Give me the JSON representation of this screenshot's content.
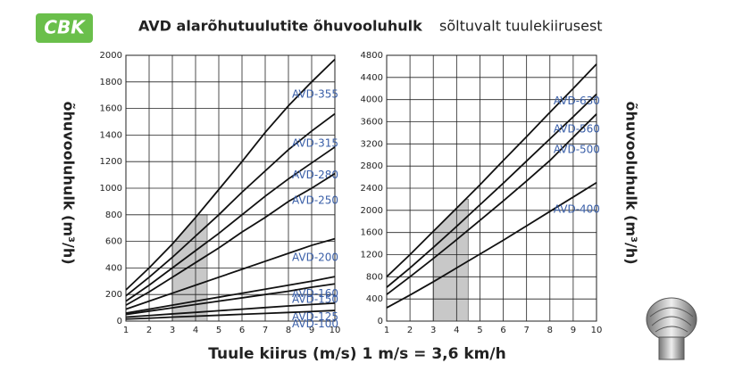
{
  "header": {
    "logo": "CBK",
    "title_bold": "AVD alarõhutuulutite õhuvooluhulk",
    "title_rest": "sõltuvalt tuulekiirusest",
    "x_label": "Tuule kiirus (m/s) 1 m/s = 3,6 km/h",
    "y_label": "õhuvooluhulk (m³/h)"
  },
  "chart_data": [
    {
      "type": "line",
      "x": [
        1,
        2,
        3,
        4,
        5,
        6,
        7,
        8,
        9,
        10
      ],
      "xlim": [
        1,
        10
      ],
      "xticks": [
        1,
        2,
        3,
        4,
        5,
        6,
        7,
        8,
        9,
        10
      ],
      "ylim": [
        0,
        2000
      ],
      "yticks": [
        0,
        200,
        400,
        600,
        800,
        1000,
        1200,
        1400,
        1600,
        1800,
        2000
      ],
      "grid": true,
      "shade": {
        "x": [
          3,
          4.5
        ],
        "top": 800,
        "color": "#c8c8c8"
      },
      "series": [
        {
          "name": "AVD-355",
          "color": "#111111",
          "values": [
            235,
            400,
            580,
            780,
            990,
            1200,
            1420,
            1620,
            1800,
            1970
          ]
        },
        {
          "name": "AVD-315",
          "color": "#111111",
          "values": [
            190,
            330,
            480,
            640,
            800,
            970,
            1130,
            1290,
            1430,
            1560
          ]
        },
        {
          "name": "AVD-280",
          "color": "#111111",
          "values": [
            150,
            270,
            400,
            530,
            660,
            800,
            940,
            1070,
            1190,
            1310
          ]
        },
        {
          "name": "AVD-250",
          "color": "#111111",
          "values": [
            120,
            220,
            330,
            440,
            550,
            670,
            780,
            900,
            1000,
            1110
          ]
        },
        {
          "name": "AVD-200",
          "color": "#111111",
          "values": [
            90,
            150,
            210,
            270,
            330,
            390,
            450,
            510,
            570,
            620
          ]
        },
        {
          "name": "AVD-160",
          "color": "#111111",
          "values": [
            60,
            90,
            120,
            150,
            180,
            210,
            240,
            270,
            300,
            335
          ]
        },
        {
          "name": "AVD-150",
          "color": "#111111",
          "values": [
            50,
            75,
            100,
            125,
            150,
            175,
            200,
            225,
            255,
            280
          ]
        },
        {
          "name": "AVD-125",
          "color": "#111111",
          "values": [
            30,
            42,
            54,
            66,
            78,
            90,
            102,
            114,
            125,
            135
          ]
        },
        {
          "name": "AVD-100",
          "color": "#111111",
          "values": [
            15,
            22,
            30,
            37,
            44,
            51,
            58,
            65,
            72,
            80
          ]
        }
      ]
    },
    {
      "type": "line",
      "x": [
        1,
        2,
        3,
        4,
        5,
        6,
        7,
        8,
        9,
        10
      ],
      "xlim": [
        1,
        10
      ],
      "xticks": [
        1,
        2,
        3,
        4,
        5,
        6,
        7,
        8,
        9,
        10
      ],
      "ylim": [
        0,
        4800
      ],
      "yticks": [
        0,
        400,
        800,
        1200,
        1600,
        2000,
        2400,
        2800,
        3200,
        3600,
        4000,
        4400,
        4800
      ],
      "grid": true,
      "shade": {
        "x": [
          3,
          4.5
        ],
        "top": 2200,
        "color": "#c8c8c8"
      },
      "series": [
        {
          "name": "AVD-630",
          "color": "#111111",
          "values": [
            800,
            1200,
            1620,
            2040,
            2460,
            2900,
            3330,
            3770,
            4200,
            4640
          ]
        },
        {
          "name": "AVD-560",
          "color": "#111111",
          "values": [
            610,
            960,
            1330,
            1710,
            2100,
            2490,
            2890,
            3290,
            3690,
            4100
          ]
        },
        {
          "name": "AVD-500",
          "color": "#111111",
          "values": [
            480,
            800,
            1130,
            1470,
            1820,
            2170,
            2530,
            2900,
            3320,
            3740
          ]
        },
        {
          "name": "AVD-400",
          "color": "#111111",
          "values": [
            240,
            470,
            710,
            960,
            1210,
            1460,
            1720,
            1980,
            2240,
            2500
          ]
        }
      ]
    }
  ]
}
